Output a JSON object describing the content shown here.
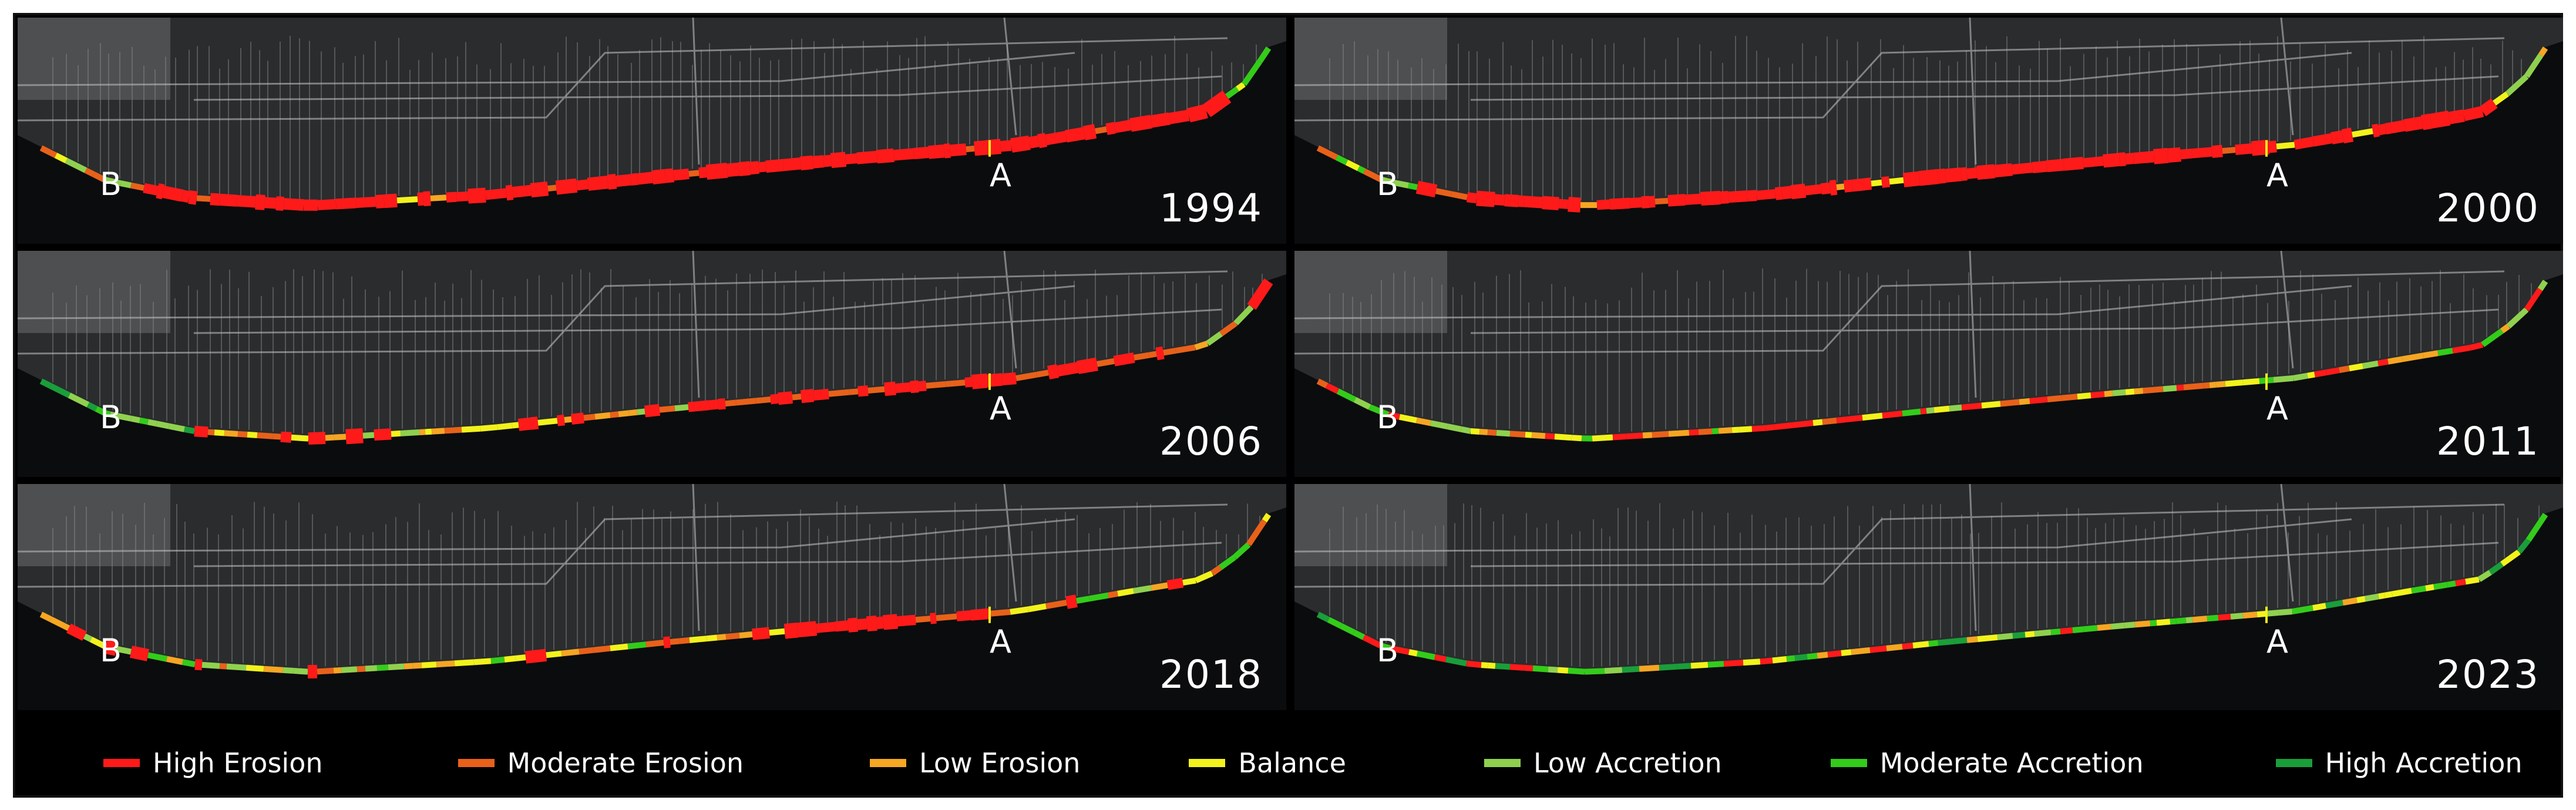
{
  "panels": [
    {
      "year": "1994",
      "label_a": "A",
      "label_b": "B",
      "profile": "high"
    },
    {
      "year": "2000",
      "label_a": "A",
      "label_b": "B",
      "profile": "high2"
    },
    {
      "year": "2006",
      "label_a": "A",
      "label_b": "B",
      "profile": "mixhigh"
    },
    {
      "year": "2011",
      "label_a": "A",
      "label_b": "B",
      "profile": "mix"
    },
    {
      "year": "2018",
      "label_a": "A",
      "label_b": "B",
      "profile": "mix2"
    },
    {
      "year": "2023",
      "label_a": "A",
      "label_b": "B",
      "profile": "mixgreen"
    }
  ],
  "legend": [
    {
      "label": "High Erosion",
      "color": "#ff1a1a"
    },
    {
      "label": "Moderate Erosion",
      "color": "#e8611a"
    },
    {
      "label": "Low Erosion",
      "color": "#f5a623"
    },
    {
      "label": "Balance",
      "color": "#f2f21c"
    },
    {
      "label": "Low Accretion",
      "color": "#8fd14f"
    },
    {
      "label": "Moderate Accretion",
      "color": "#33cc1a"
    },
    {
      "label": "High Accretion",
      "color": "#1a9e3a"
    }
  ]
}
